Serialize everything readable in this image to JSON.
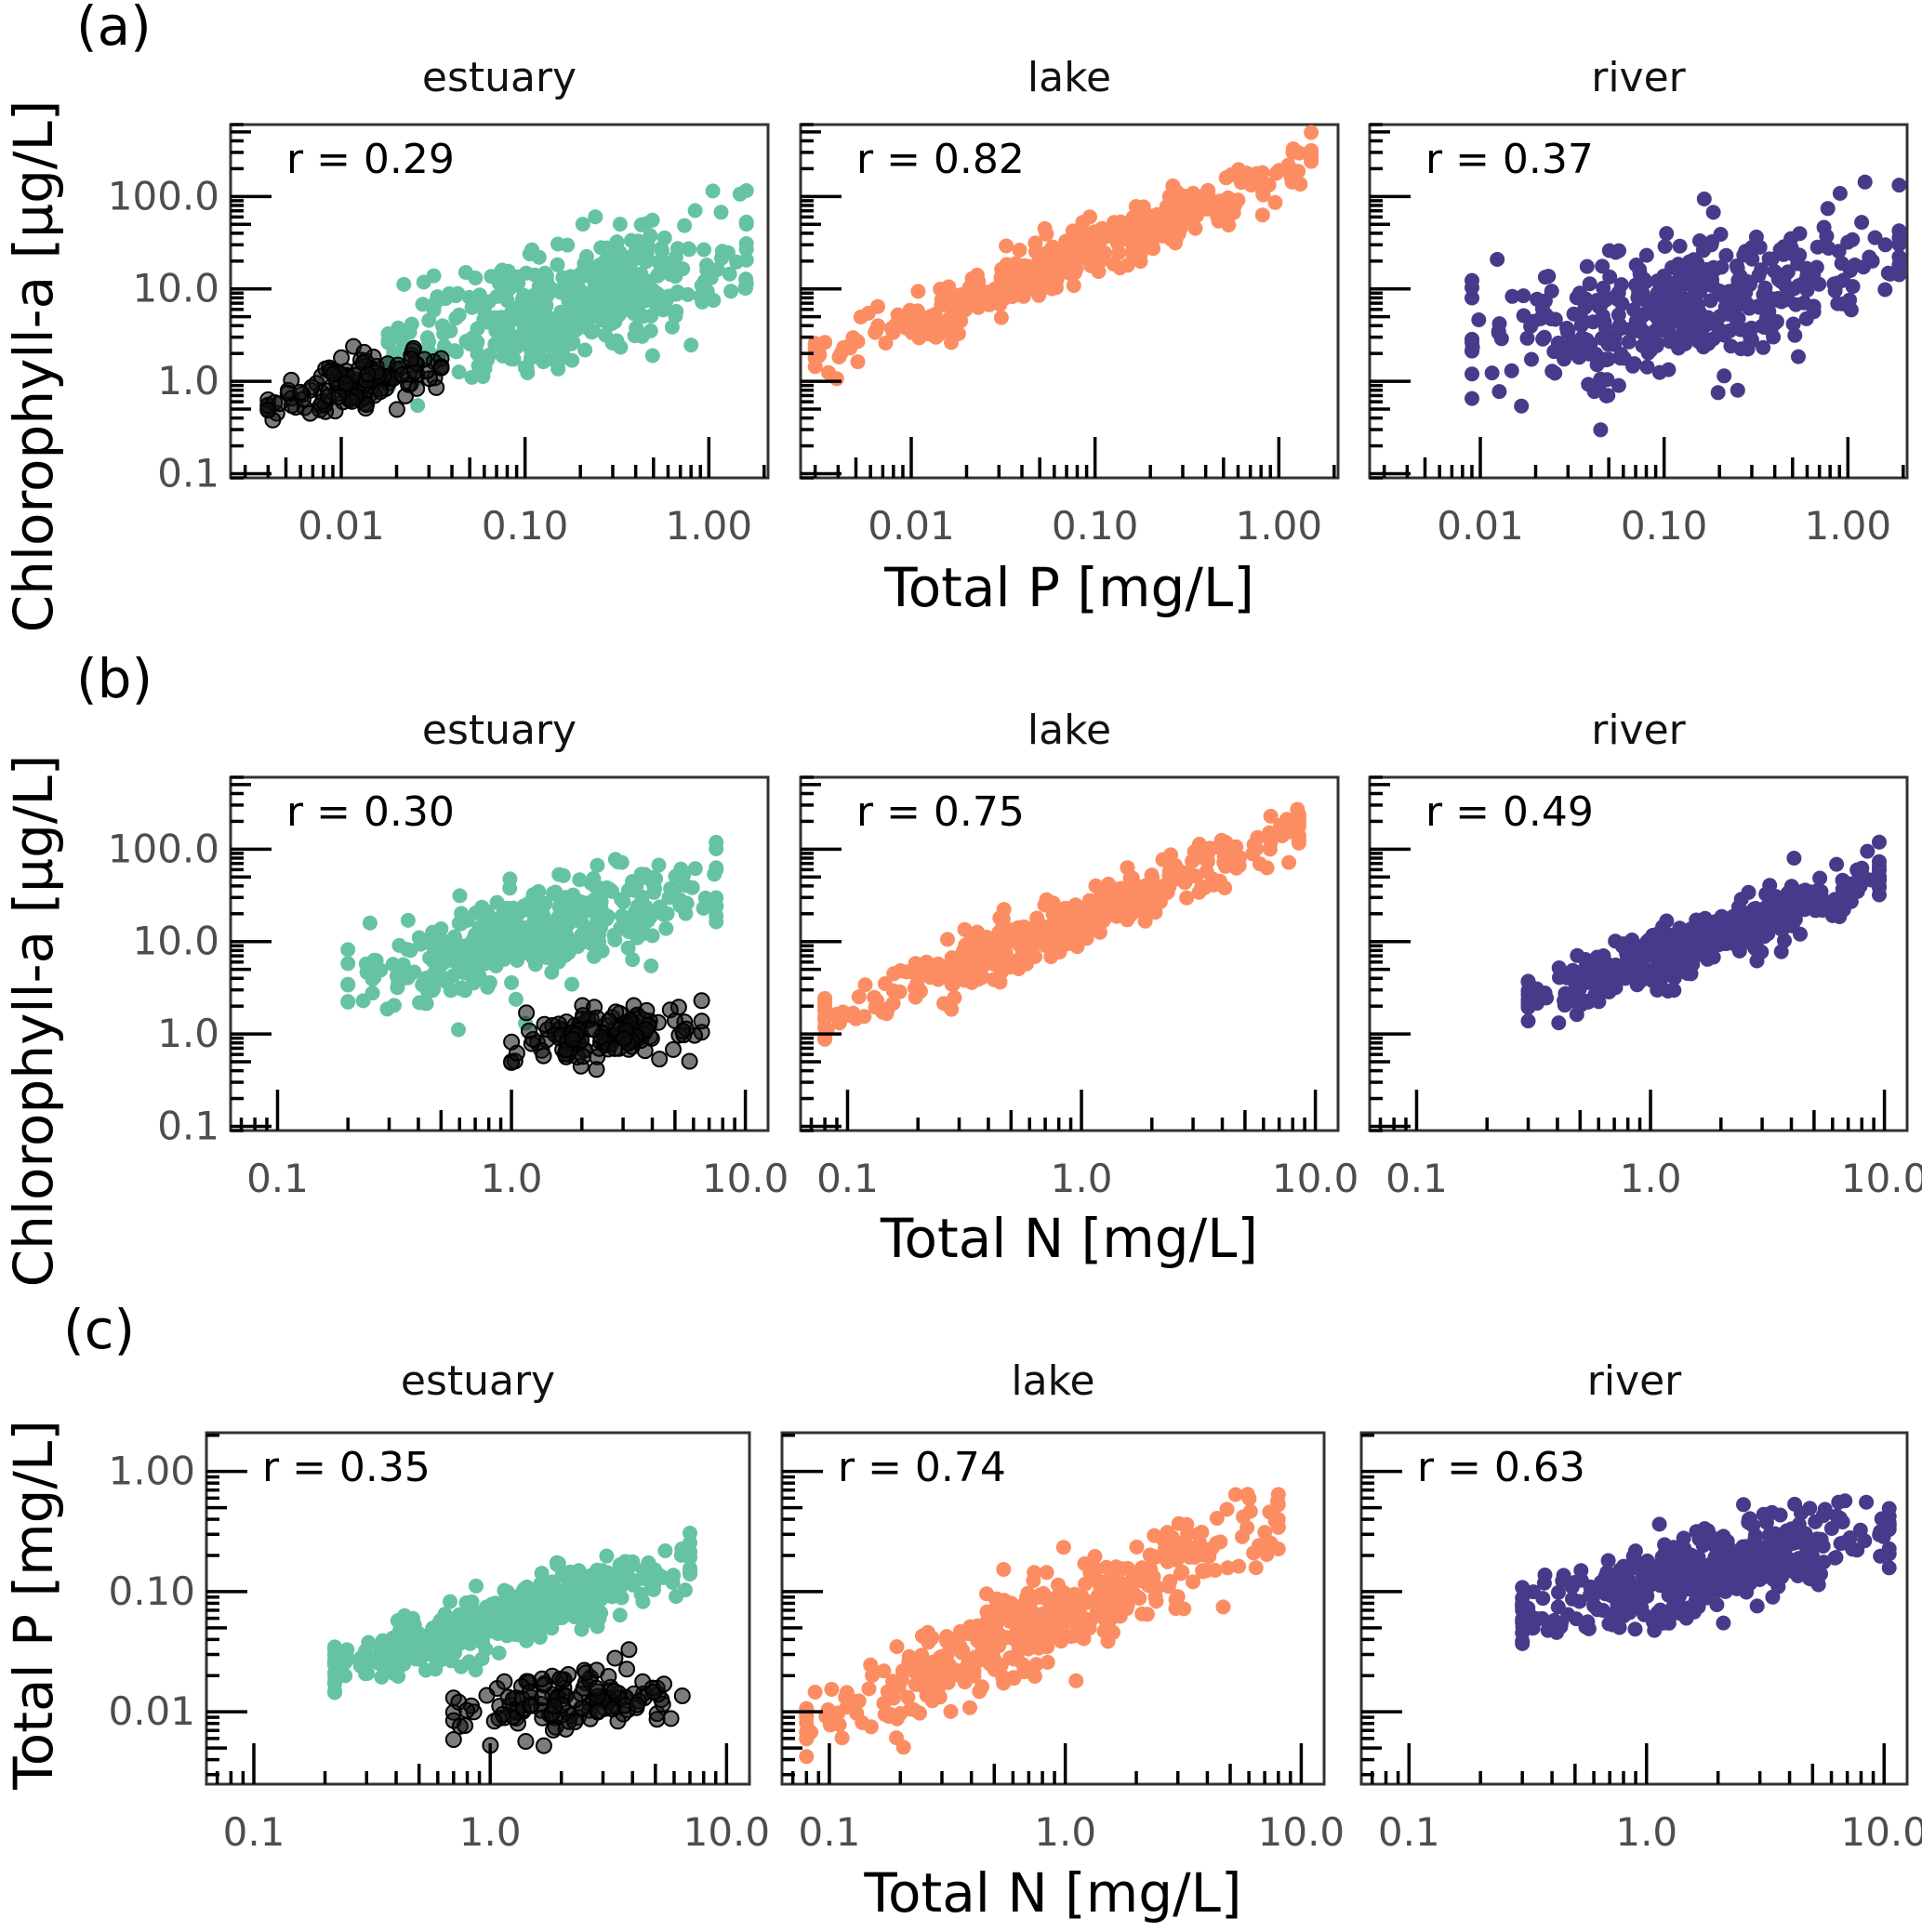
{
  "colors": {
    "estuary": "#66c2a5",
    "lake": "#fc8d62",
    "river": "#473a8a",
    "excluded": "#111111"
  },
  "y_axis_title_chl": "Chlorophyll-a [µg/L]",
  "y_axis_title_tp": "Total P [mg/L]",
  "chart_data": [
    {
      "type": "scatter",
      "row_label": "(a)",
      "x_variable": "Total P",
      "y_variable": "Chlorophyll-a",
      "xlabel": "Total P [mg/L]",
      "ylabel": "Chlorophyll-a [µg/L]",
      "xlog": true,
      "ylog": true,
      "xlim": [
        0.0025,
        2.1
      ],
      "ylim": [
        0.09,
        600
      ],
      "xticks": [
        0.01,
        0.1,
        1
      ],
      "xtick_labels": [
        "0.01",
        "0.10",
        "1.00"
      ],
      "yticks": [
        0.1,
        1,
        10,
        100
      ],
      "ytick_labels": [
        "0.1",
        "1.0",
        "10.0",
        "100.0"
      ],
      "panels": [
        {
          "facet": "estuary",
          "r_label": "r = 0.29",
          "series": "estuary",
          "cloud": {
            "x_range": [
              0.018,
              1.6
            ],
            "log_y_at_x_low": 0.4,
            "log_y_at_x_high": 1.3,
            "spread": 0.75
          },
          "excluded_cloud": {
            "x_range": [
              0.004,
              0.035
            ],
            "log_y_at_x_low": -0.3,
            "log_y_at_x_high": 0.2,
            "spread": 0.35
          }
        },
        {
          "facet": "lake",
          "r_label": "r = 0.82",
          "series": "lake",
          "cloud": {
            "x_range": [
              0.003,
              1.5
            ],
            "log_y_at_x_low": 0.25,
            "log_y_at_x_high": 2.35,
            "spread": 0.35
          }
        },
        {
          "facet": "river",
          "r_label": "r = 0.37",
          "series": "river",
          "cloud": {
            "x_range": [
              0.009,
              1.9
            ],
            "log_y_at_x_low": 0.35,
            "log_y_at_x_high": 1.3,
            "spread": 0.8
          }
        }
      ]
    },
    {
      "type": "scatter",
      "row_label": "(b)",
      "x_variable": "Total N",
      "y_variable": "Chlorophyll-a",
      "xlabel": "Total N [mg/L]",
      "ylabel": "Chlorophyll-a [µg/L]",
      "xlog": true,
      "ylog": true,
      "xlim": [
        0.063,
        12.5
      ],
      "ylim": [
        0.09,
        600
      ],
      "xticks": [
        0.1,
        1,
        10
      ],
      "xtick_labels": [
        "0.1",
        "1.0",
        "10.0"
      ],
      "yticks": [
        0.1,
        1,
        10,
        100
      ],
      "ytick_labels": [
        "0.1",
        "1.0",
        "10.0",
        "100.0"
      ],
      "panels": [
        {
          "facet": "estuary",
          "r_label": "r = 0.30",
          "series": "estuary",
          "cloud": {
            "x_range": [
              0.2,
              7.5
            ],
            "log_y_at_x_low": 0.55,
            "log_y_at_x_high": 1.6,
            "spread": 0.55
          },
          "excluded_cloud": {
            "x_range": [
              1.0,
              6.5
            ],
            "log_y_at_x_low": -0.1,
            "log_y_at_x_high": 0.1,
            "spread": 0.35
          }
        },
        {
          "facet": "lake",
          "r_label": "r = 0.75",
          "series": "lake",
          "cloud": {
            "x_range": [
              0.08,
              8.5
            ],
            "log_y_at_x_low": 0.15,
            "log_y_at_x_high": 2.2,
            "spread": 0.35
          }
        },
        {
          "facet": "river",
          "r_label": "r = 0.49",
          "series": "river",
          "cloud": {
            "x_range": [
              0.3,
              9.5
            ],
            "log_y_at_x_low": 0.35,
            "log_y_at_x_high": 1.7,
            "spread": 0.35
          }
        }
      ]
    },
    {
      "type": "scatter",
      "row_label": "(c)",
      "x_variable": "Total N",
      "y_variable": "Total P",
      "xlabel": "Total N [mg/L]",
      "ylabel": "Total P [mg/L]",
      "xlog": true,
      "ylog": true,
      "xlim": [
        0.063,
        12.5
      ],
      "ylim": [
        0.0025,
        2.1
      ],
      "xticks": [
        0.1,
        1,
        10
      ],
      "xtick_labels": [
        "0.1",
        "1.0",
        "10.0"
      ],
      "yticks": [
        0.01,
        0.1,
        1
      ],
      "ytick_labels": [
        "0.01",
        "0.10",
        "1.00"
      ],
      "panels": [
        {
          "facet": "estuary",
          "r_label": "r = 0.35",
          "series": "estuary",
          "cloud": {
            "x_range": [
              0.22,
              7.0
            ],
            "log_y_at_x_low": -1.65,
            "log_y_at_x_high": -0.75,
            "spread": 0.3
          },
          "excluded_cloud": {
            "x_range": [
              0.7,
              6.5
            ],
            "log_y_at_x_low": -2.0,
            "log_y_at_x_high": -1.85,
            "spread": 0.3
          }
        },
        {
          "facet": "lake",
          "r_label": "r = 0.74",
          "series": "lake",
          "cloud": {
            "x_range": [
              0.08,
              8.0
            ],
            "log_y_at_x_low": -2.15,
            "log_y_at_x_high": -0.4,
            "spread": 0.45
          }
        },
        {
          "facet": "river",
          "r_label": "r = 0.63",
          "series": "river",
          "cloud": {
            "x_range": [
              0.3,
              10.5
            ],
            "log_y_at_x_low": -1.2,
            "log_y_at_x_high": -0.45,
            "spread": 0.4
          }
        }
      ]
    }
  ]
}
